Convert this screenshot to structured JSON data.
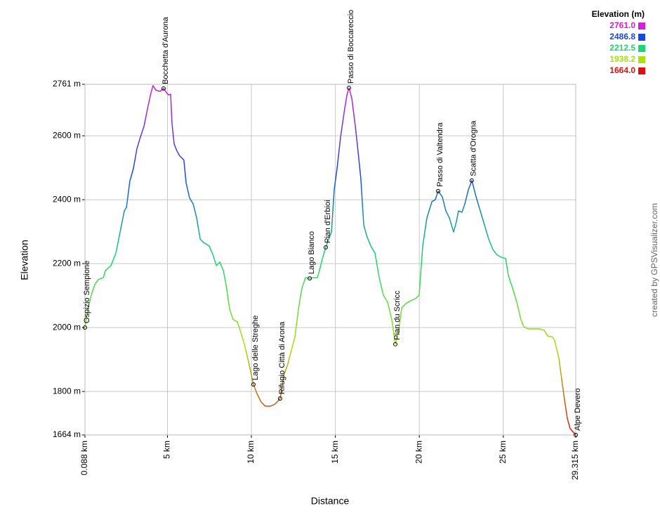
{
  "chart_data": {
    "type": "line",
    "x_label": "Distance",
    "y_label": "Elevation",
    "credit": "created by GPSVisualizer.com",
    "xlim": [
      0.088,
      29.315
    ],
    "ylim": [
      1664,
      2761
    ],
    "xticks": [
      {
        "value": 0.088,
        "label": "0.088 km"
      },
      {
        "value": 5,
        "label": "5 km"
      },
      {
        "value": 10,
        "label": "10 km"
      },
      {
        "value": 15,
        "label": "15 km"
      },
      {
        "value": 20,
        "label": "20 km"
      },
      {
        "value": 25,
        "label": "25 km"
      },
      {
        "value": 29.315,
        "label": "29.315 km"
      }
    ],
    "yticks": [
      {
        "value": 1664,
        "label": "1664 m"
      },
      {
        "value": 1800,
        "label": "1800 m"
      },
      {
        "value": 2000,
        "label": "2000 m"
      },
      {
        "value": 2200,
        "label": "2200 m"
      },
      {
        "value": 2400,
        "label": "2400 m"
      },
      {
        "value": 2600,
        "label": "2600 m"
      },
      {
        "value": 2761,
        "label": "2761 m"
      }
    ],
    "grid": true,
    "legend": {
      "title": "Elevation (m)",
      "position": "upper right",
      "items": [
        {
          "value": 2761,
          "label": "2761.0",
          "color": "#d81ed8"
        },
        {
          "value": 2486.8,
          "label": "2486.8",
          "color": "#1848e0"
        },
        {
          "value": 2212.5,
          "label": "2212.5",
          "color": "#18d870"
        },
        {
          "value": 1938.2,
          "label": "1938.2",
          "color": "#a8e010"
        },
        {
          "value": 1664,
          "label": "1664.0",
          "color": "#e01010"
        }
      ]
    },
    "series": [
      {
        "name": "Elevation",
        "x": [
          0.088,
          0.26,
          0.46,
          0.67,
          0.88,
          1.18,
          1.3,
          1.64,
          1.93,
          2.14,
          2.43,
          2.56,
          2.76,
          2.97,
          3.18,
          3.39,
          3.6,
          3.81,
          4.02,
          4.14,
          4.31,
          4.56,
          4.77,
          4.94,
          5.06,
          5.19,
          5.27,
          5.4,
          5.57,
          5.73,
          5.98,
          6.11,
          6.32,
          6.53,
          6.74,
          6.95,
          7.15,
          7.49,
          7.7,
          7.91,
          8.12,
          8.33,
          8.49,
          8.7,
          8.91,
          9.16,
          9.33,
          9.58,
          9.83,
          10.12,
          10.33,
          10.58,
          10.83,
          11.13,
          11.42,
          11.71,
          11.92,
          12.17,
          12.42,
          12.59,
          12.8,
          13.01,
          13.22,
          13.47,
          13.68,
          13.93,
          14.1,
          14.26,
          14.43,
          14.6,
          14.77,
          14.93,
          15.1,
          15.31,
          15.52,
          15.69,
          15.81,
          15.98,
          16.19,
          16.35,
          16.52,
          16.69,
          16.86,
          17.11,
          17.36,
          17.61,
          17.86,
          18.11,
          18.36,
          18.57,
          18.78,
          18.95,
          19.2,
          19.49,
          19.78,
          19.99,
          20.2,
          20.45,
          20.75,
          20.95,
          21.12,
          21.37,
          21.58,
          21.79,
          22.04,
          22.21,
          22.33,
          22.54,
          22.71,
          22.92,
          23.13,
          23.38,
          23.63,
          23.88,
          24.13,
          24.38,
          24.63,
          24.88,
          25.14,
          25.3,
          25.55,
          25.8,
          26.05,
          26.22,
          26.47,
          26.81,
          27.14,
          27.43,
          27.64,
          27.94,
          28.06,
          28.31,
          28.48,
          28.65,
          28.81,
          28.98,
          29.315
        ],
        "values": [
          2000,
          2058,
          2101,
          2134,
          2150,
          2156,
          2178,
          2194,
          2233,
          2288,
          2365,
          2376,
          2458,
          2497,
          2559,
          2596,
          2629,
          2684,
          2735,
          2757,
          2743,
          2739,
          2748,
          2735,
          2728,
          2730,
          2640,
          2574,
          2552,
          2537,
          2524,
          2453,
          2405,
          2387,
          2343,
          2277,
          2266,
          2255,
          2229,
          2194,
          2205,
          2178,
          2134,
          2058,
          2025,
          2018,
          1992,
          1948,
          1893,
          1822,
          1794,
          1767,
          1754,
          1754,
          1761,
          1778,
          1849,
          1886,
          1937,
          1970,
          2058,
          2124,
          2156,
          2154,
          2156,
          2156,
          2189,
          2222,
          2251,
          2277,
          2299,
          2431,
          2497,
          2596,
          2673,
          2728,
          2750,
          2717,
          2629,
          2552,
          2464,
          2321,
          2288,
          2255,
          2233,
          2156,
          2101,
          2080,
          2025,
          1948,
          1992,
          2062,
          2075,
          2084,
          2091,
          2101,
          2255,
          2343,
          2394,
          2400,
          2427,
          2409,
          2365,
          2343,
          2299,
          2332,
          2365,
          2361,
          2387,
          2431,
          2460,
          2409,
          2365,
          2321,
          2277,
          2244,
          2227,
          2220,
          2216,
          2163,
          2124,
          2080,
          2025,
          2003,
          1996,
          1996,
          1996,
          1992,
          1974,
          1970,
          1959,
          1904,
          1838,
          1772,
          1717,
          1684,
          1664
        ]
      }
    ],
    "waypoints": [
      {
        "name": "Ospizio Sempione",
        "x": 0.088,
        "y": 2000
      },
      {
        "name": "Bocchetta d'Aurona",
        "x": 4.77,
        "y": 2748
      },
      {
        "name": "Lago delle Streghe",
        "x": 10.12,
        "y": 1822
      },
      {
        "name": "Rifugio Città di Arona",
        "x": 11.71,
        "y": 1778
      },
      {
        "name": "Lago Bianco",
        "x": 13.47,
        "y": 2154
      },
      {
        "name": "Pian d'Erbioi",
        "x": 14.43,
        "y": 2251
      },
      {
        "name": "Passo di Boccareccio",
        "x": 15.81,
        "y": 2750
      },
      {
        "name": "Pian du Scricc",
        "x": 18.57,
        "y": 1948
      },
      {
        "name": "Passo di Valtendra",
        "x": 21.12,
        "y": 2427
      },
      {
        "name": "Scatta d'Orogna",
        "x": 23.12,
        "y": 2460
      },
      {
        "name": "Alpe Devero",
        "x": 29.315,
        "y": 1664
      }
    ]
  }
}
